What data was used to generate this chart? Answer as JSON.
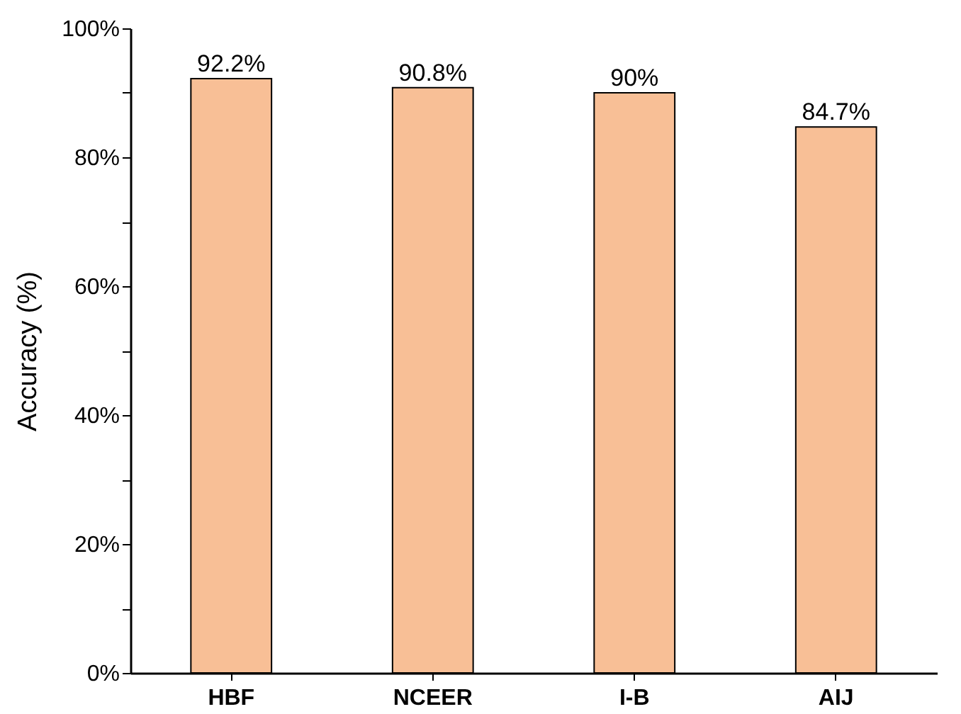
{
  "chart_data": {
    "type": "bar",
    "ylabel": "Accuracy (%)",
    "categories": [
      "HBF",
      "NCEER",
      "I-B",
      "AIJ"
    ],
    "values": [
      92.2,
      90.8,
      90,
      84.7
    ],
    "value_labels": [
      "92.2%",
      "90.8%",
      "90%",
      "84.7%"
    ],
    "color": "#f8bf96",
    "ylim": [
      0,
      100
    ],
    "yticks": [
      {
        "value": 0,
        "label": "0%"
      },
      {
        "value": 10,
        "label": null
      },
      {
        "value": 20,
        "label": "20%"
      },
      {
        "value": 30,
        "label": null
      },
      {
        "value": 40,
        "label": "40%"
      },
      {
        "value": 50,
        "label": null
      },
      {
        "value": 60,
        "label": "60%"
      },
      {
        "value": 70,
        "label": null
      },
      {
        "value": 80,
        "label": "80%"
      },
      {
        "value": 90,
        "label": null
      },
      {
        "value": 100,
        "label": "100%"
      }
    ],
    "grid": false
  }
}
